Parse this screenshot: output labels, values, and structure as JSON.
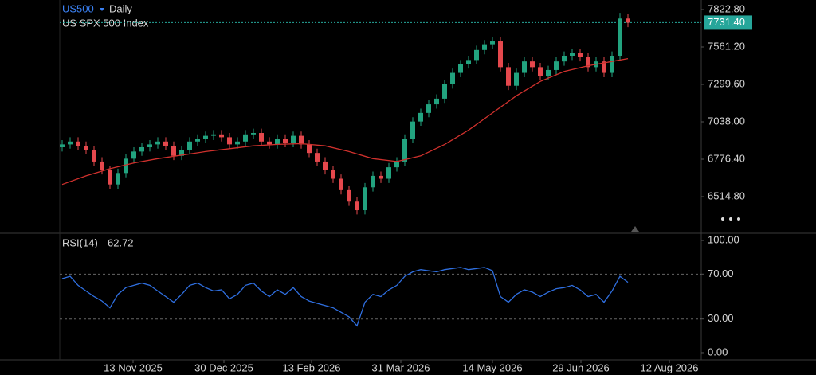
{
  "chart_data": [
    {
      "type": "candlestick",
      "symbol": "US500",
      "interval": "Daily",
      "title": "US SPX 500 Index",
      "up_color": "#22a37f",
      "down_color": "#e5484d",
      "last_color": "#26a69a",
      "last_label": "7731.40",
      "xlim": [
        -0.3,
        80.2
      ],
      "ylim": [
        6264.3,
        7889.6
      ],
      "yticks": [
        {
          "value": 7822.8,
          "label": "7822.80"
        },
        {
          "value": 7561.2,
          "label": "7561.20"
        },
        {
          "value": 7299.6,
          "label": "7299.60"
        },
        {
          "value": 7038,
          "label": "7038.00"
        },
        {
          "value": 6776.4,
          "label": "6776.40"
        },
        {
          "value": 6514.8,
          "label": "6514.80"
        }
      ],
      "open": [
        6860,
        6880,
        6900,
        6870,
        6840,
        6760,
        6700,
        6600,
        6680,
        6780,
        6830,
        6860,
        6880,
        6900,
        6870,
        6800,
        6840,
        6900,
        6920,
        6940,
        6950,
        6930,
        6880,
        6900,
        6950,
        6960,
        6900,
        6880,
        6920,
        6890,
        6940,
        6880,
        6820,
        6760,
        6700,
        6640,
        6560,
        6480,
        6420,
        6580,
        6660,
        6640,
        6720,
        6760,
        6920,
        7040,
        7100,
        7160,
        7200,
        7300,
        7380,
        7440,
        7470,
        7540,
        7580,
        7600,
        7420,
        7290,
        7380,
        7460,
        7420,
        7360,
        7400,
        7460,
        7500,
        7520,
        7490,
        7420,
        7460,
        7380,
        7500,
        7760
      ],
      "high": [
        6910,
        6930,
        6930,
        6900,
        6870,
        6790,
        6730,
        6710,
        6810,
        6860,
        6890,
        6910,
        6930,
        6930,
        6900,
        6870,
        6930,
        6950,
        6970,
        6980,
        6980,
        6960,
        6930,
        6980,
        6990,
        6990,
        6930,
        6950,
        6950,
        6970,
        6970,
        6910,
        6850,
        6790,
        6730,
        6670,
        6590,
        6510,
        6610,
        6690,
        6690,
        6750,
        6790,
        6950,
        7070,
        7130,
        7190,
        7230,
        7330,
        7410,
        7470,
        7500,
        7570,
        7610,
        7630,
        7630,
        7450,
        7410,
        7490,
        7490,
        7450,
        7430,
        7490,
        7530,
        7550,
        7550,
        7520,
        7490,
        7490,
        7530,
        7800,
        7790
      ],
      "low": [
        6830,
        6850,
        6840,
        6810,
        6730,
        6670,
        6570,
        6570,
        6650,
        6750,
        6800,
        6830,
        6850,
        6840,
        6770,
        6770,
        6810,
        6870,
        6890,
        6910,
        6900,
        6850,
        6850,
        6870,
        6920,
        6870,
        6850,
        6850,
        6860,
        6860,
        6850,
        6790,
        6730,
        6670,
        6610,
        6530,
        6450,
        6390,
        6390,
        6550,
        6610,
        6610,
        6690,
        6730,
        6890,
        7010,
        7070,
        7130,
        7170,
        7270,
        7350,
        7410,
        7440,
        7510,
        7550,
        7390,
        7260,
        7260,
        7350,
        7390,
        7330,
        7330,
        7370,
        7430,
        7470,
        7460,
        7390,
        7390,
        7350,
        7350,
        7470,
        7700
      ],
      "close": [
        6880,
        6900,
        6870,
        6840,
        6760,
        6700,
        6600,
        6680,
        6780,
        6830,
        6860,
        6880,
        6900,
        6870,
        6800,
        6840,
        6900,
        6920,
        6940,
        6950,
        6930,
        6880,
        6900,
        6950,
        6960,
        6900,
        6880,
        6920,
        6890,
        6940,
        6880,
        6820,
        6760,
        6700,
        6640,
        6560,
        6480,
        6420,
        6580,
        6660,
        6640,
        6720,
        6760,
        6920,
        7040,
        7100,
        7160,
        7200,
        7300,
        7380,
        7440,
        7470,
        7540,
        7580,
        7600,
        7420,
        7290,
        7380,
        7460,
        7420,
        7360,
        7400,
        7460,
        7500,
        7520,
        7490,
        7420,
        7460,
        7380,
        7500,
        7760,
        7731.4
      ],
      "series": [
        {
          "color": "#d0312d",
          "x": [
            0,
            3,
            6,
            9,
            12,
            15,
            18,
            21,
            24,
            27,
            30,
            33,
            36,
            39,
            42,
            45,
            48,
            51,
            54,
            57,
            60,
            63,
            66,
            69,
            71
          ],
          "values": [
            6600,
            6660,
            6710,
            6750,
            6780,
            6805,
            6830,
            6850,
            6870,
            6880,
            6885,
            6870,
            6830,
            6780,
            6760,
            6800,
            6880,
            6980,
            7100,
            7220,
            7320,
            7390,
            7430,
            7460,
            7480
          ]
        }
      ]
    },
    {
      "type": "line",
      "title": "RSI(14)",
      "xlim": [
        -0.3,
        80.2
      ],
      "ylim": [
        -6.4,
        105.7
      ],
      "xticks": [
        {
          "value": 8.9,
          "label": "13 Nov 2025"
        },
        {
          "value": 20.3,
          "label": "30 Dec 2025"
        },
        {
          "value": 31.3,
          "label": "13 Feb 2026"
        },
        {
          "value": 42.5,
          "label": "31 Mar 2026"
        },
        {
          "value": 54,
          "label": "14 May 2026"
        },
        {
          "value": 65.1,
          "label": "29 Jun 2026"
        },
        {
          "value": 76.2,
          "label": "12 Aug 2026"
        }
      ],
      "yticks": [
        {
          "value": 100,
          "label": "100.00"
        },
        {
          "value": 70,
          "label": "70.00"
        },
        {
          "value": 30,
          "label": "30.00"
        },
        {
          "value": 0,
          "label": "0.00"
        }
      ],
      "levels": [
        70,
        30
      ],
      "series": [
        {
          "color": "#2f6fe0",
          "value_label": "62.72",
          "values": [
            66,
            68,
            60,
            55,
            50,
            46,
            40,
            52,
            58,
            60,
            62,
            60,
            55,
            50,
            45,
            52,
            60,
            62,
            58,
            55,
            56,
            48,
            52,
            60,
            62,
            55,
            50,
            56,
            52,
            58,
            50,
            46,
            44,
            42,
            40,
            36,
            32,
            24,
            45,
            52,
            50,
            56,
            60,
            68,
            72,
            74,
            73,
            72,
            74,
            75,
            76,
            74,
            75,
            76,
            73,
            50,
            45,
            52,
            56,
            54,
            50,
            54,
            57,
            58,
            60,
            56,
            50,
            52,
            45,
            55,
            68,
            62.72
          ]
        }
      ]
    }
  ]
}
